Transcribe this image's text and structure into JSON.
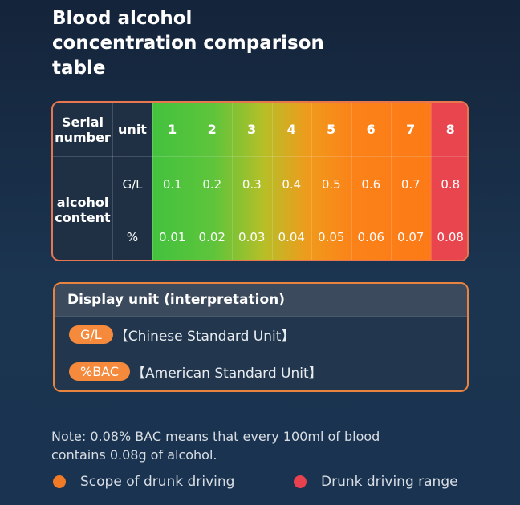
{
  "header": {
    "title": "Blood alcohol concentration comparison table"
  },
  "table": {
    "header": [
      "Serial number",
      "unit",
      "1",
      "2",
      "3",
      "4",
      "5",
      "6",
      "7",
      "8"
    ],
    "row_label": "alcohol content",
    "rows": [
      [
        "G/L",
        "0.1",
        "0.2",
        "0.3",
        "0.4",
        "0.5",
        "0.6",
        "0.7",
        "0.8"
      ],
      [
        "%",
        "0.01",
        "0.02",
        "0.03",
        "0.04",
        "0.05",
        "0.06",
        "0.07",
        "0.08"
      ]
    ]
  },
  "display_units": {
    "title": "Display unit (interpretation)",
    "items": [
      {
        "badge": "G/L",
        "text": "【Chinese Standard Unit】"
      },
      {
        "badge": "%BAC",
        "text": "【American Standard Unit】"
      }
    ]
  },
  "note": "Note: 0.08% BAC means that every 100ml of blood contains 0.08g of alcohol.",
  "legend": [
    {
      "label": "Scope of drunk driving",
      "color": "#f07a26"
    },
    {
      "label": "Drunk driving range",
      "color": "#e8414f"
    }
  ]
}
